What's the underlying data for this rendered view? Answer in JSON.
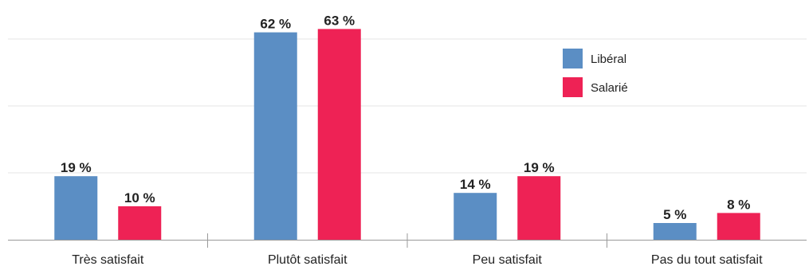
{
  "chart_data": {
    "type": "bar",
    "categories": [
      "Très satisfait",
      "Plutôt satisfait",
      "Peu satisfait",
      "Pas du tout satisfait"
    ],
    "series": [
      {
        "name": "Libéral",
        "values": [
          19,
          62,
          14,
          5
        ],
        "color": "#5b8ec4"
      },
      {
        "name": "Salarié",
        "values": [
          10,
          63,
          19,
          8
        ],
        "color": "#ee2255"
      }
    ],
    "value_suffix": "%",
    "ylim": [
      0,
      70
    ],
    "grid": true,
    "legend": "top-right",
    "title": "",
    "xlabel": "",
    "ylabel": ""
  }
}
